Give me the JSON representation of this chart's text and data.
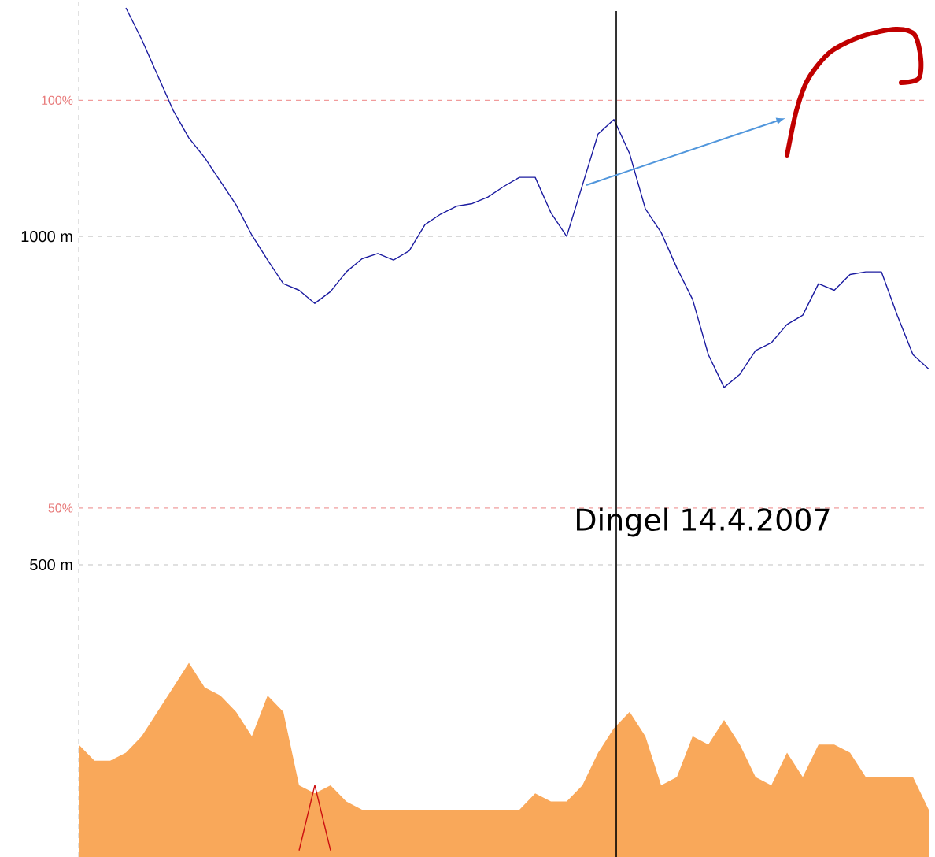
{
  "chart_data": {
    "type": "line",
    "categories": [
      null,
      null,
      null,
      null,
      null,
      null,
      null,
      null,
      null,
      null,
      null,
      null,
      null,
      null,
      null,
      null,
      null,
      null,
      null,
      null,
      null,
      null,
      null,
      null,
      null,
      null,
      null,
      null,
      null,
      null,
      null,
      null,
      null,
      null,
      null,
      null,
      null,
      null,
      null,
      null,
      null,
      null,
      null,
      null,
      null,
      null,
      null,
      null,
      null,
      null,
      null,
      null,
      null,
      null,
      null
    ],
    "series": [
      {
        "type": "area",
        "axis": "y2",
        "color": "#f9a85a",
        "values": [
          21,
          19,
          19,
          20,
          22,
          25,
          28,
          31,
          28,
          27,
          25,
          22,
          27,
          25,
          16,
          15,
          16,
          14,
          13,
          13,
          13,
          13,
          13,
          13,
          13,
          13,
          13,
          13,
          13,
          15,
          14,
          14,
          16,
          20,
          23,
          25,
          22,
          16,
          17,
          22,
          21,
          24,
          21,
          17,
          16,
          20,
          17,
          21,
          21,
          20,
          17,
          17,
          17,
          17,
          13
        ]
      },
      {
        "type": "line",
        "axis": "y2",
        "color": "#cc1010",
        "values": [
          null,
          null,
          null,
          null,
          null,
          null,
          null,
          null,
          null,
          null,
          null,
          null,
          null,
          null,
          8,
          16,
          8,
          null,
          null,
          null,
          null,
          null,
          null,
          null,
          null,
          null,
          null,
          null,
          null,
          null,
          null,
          null,
          null,
          null,
          null,
          null,
          null,
          null,
          null,
          null,
          null,
          null,
          null,
          null,
          null,
          null,
          null,
          null,
          null,
          null,
          null,
          null,
          null,
          null,
          null
        ]
      },
      {
        "axis": "y",
        "color": "#1c1ca0",
        "values": [
          null,
          null,
          null,
          1348,
          1300,
          1246,
          1192,
          1150,
          1120,
          1084,
          1048,
          1002,
          964,
          928,
          918,
          898,
          916,
          946,
          966,
          974,
          964,
          978,
          1018,
          1034,
          1046,
          1050,
          1060,
          1076,
          1090,
          1090,
          1036,
          1000,
          1078,
          1156,
          1178,
          1126,
          1042,
          1006,
          952,
          904,
          820,
          770,
          790,
          826,
          838,
          866,
          880,
          928,
          918,
          942,
          946,
          946,
          880,
          820,
          798
        ]
      }
    ],
    "ylim": [
      55,
      1360
    ],
    "yticks": [
      {
        "value": 500,
        "label": "500 m"
      },
      {
        "value": 1000,
        "label": "1000 m"
      }
    ],
    "y2lim": [
      7.2,
      112.3
    ],
    "y2ticks": [
      {
        "value": 50,
        "label": "50%"
      },
      {
        "value": 100,
        "label": "100%"
      }
    ],
    "grid": "y",
    "tick_labels": "y",
    "annotations": [
      "Dingel 14.4.2007"
    ]
  }
}
